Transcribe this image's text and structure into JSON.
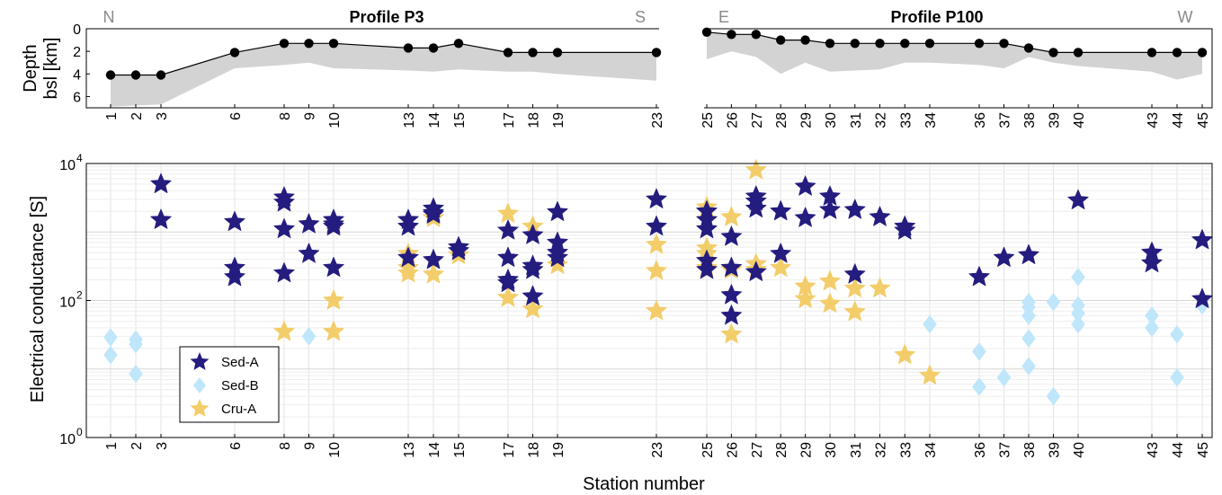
{
  "colors": {
    "sedA": "#241c7e",
    "sedB": "#bfe6fa",
    "cruA": "#f2cd69",
    "basement": "#d3d3d3"
  },
  "chart_data": [
    {
      "type": "line",
      "ylabel": "Depth bsl [km]",
      "ylabel_lines": [
        "Depth",
        "bsl [km]"
      ],
      "ylim": [
        0,
        7
      ],
      "y_reversed": true,
      "yticks": [
        0,
        2,
        4,
        6
      ],
      "panels": [
        {
          "title": "Profile P3",
          "left_label": "N",
          "right_label": "S",
          "stations": [
            1,
            2,
            3,
            6,
            8,
            9,
            10,
            13,
            14,
            15,
            17,
            18,
            19,
            23
          ],
          "sediment_depth": [
            4.1,
            4.1,
            4.1,
            2.1,
            1.3,
            1.3,
            1.3,
            1.7,
            1.7,
            1.3,
            2.1,
            2.1,
            2.1,
            2.1
          ],
          "basement_lower": [
            6.9,
            6.8,
            6.7,
            3.5,
            3.2,
            3.0,
            3.5,
            3.7,
            3.8,
            3.6,
            3.8,
            3.8,
            4.0,
            4.6
          ]
        },
        {
          "title": "Profile P100",
          "left_label": "E",
          "right_label": "W",
          "stations": [
            25,
            26,
            27,
            28,
            29,
            30,
            31,
            32,
            33,
            34,
            36,
            37,
            38,
            39,
            40,
            43,
            44,
            45
          ],
          "sediment_depth": [
            0.3,
            0.5,
            0.5,
            1.0,
            1.0,
            1.3,
            1.3,
            1.3,
            1.3,
            1.3,
            1.3,
            1.3,
            1.7,
            2.1,
            2.1,
            2.1,
            2.1,
            2.1
          ],
          "basement_lower": [
            2.7,
            2.0,
            2.5,
            4.0,
            3.0,
            3.8,
            3.7,
            3.6,
            3.0,
            3.0,
            3.2,
            3.5,
            2.5,
            3.0,
            3.3,
            3.8,
            4.5,
            4.0
          ]
        }
      ]
    },
    {
      "type": "scatter",
      "xlabel": "Station number",
      "ylabel": "Electrical conductance [S]",
      "y_scale": "log",
      "ylim": [
        1,
        10000
      ],
      "yticks": [
        1,
        100,
        10000
      ],
      "ytick_labels": [
        {
          "base": "10",
          "exp": "0"
        },
        {
          "base": "10",
          "exp": "2"
        },
        {
          "base": "10",
          "exp": "4"
        }
      ],
      "xticks": [
        1,
        2,
        3,
        6,
        8,
        9,
        10,
        13,
        14,
        15,
        17,
        18,
        19,
        23,
        25,
        26,
        27,
        28,
        29,
        30,
        31,
        32,
        33,
        34,
        36,
        37,
        38,
        39,
        40,
        43,
        44,
        45
      ],
      "grid": true,
      "legend_position": "lower-left",
      "series": [
        {
          "name": "Sed-A",
          "marker": "star",
          "color": "#241c7e",
          "x": [
            3,
            3,
            6,
            6,
            6,
            8,
            8,
            8,
            8,
            9,
            9,
            10,
            10,
            10,
            10,
            13,
            13,
            13,
            14,
            14,
            14,
            14,
            15,
            15,
            17,
            17,
            17,
            17,
            18,
            18,
            18,
            18,
            19,
            19,
            19,
            19,
            23,
            23,
            25,
            25,
            25,
            25,
            25,
            26,
            26,
            26,
            26,
            27,
            27,
            27,
            27,
            28,
            28,
            29,
            29,
            30,
            30,
            31,
            31,
            32,
            33,
            33,
            36,
            37,
            38,
            40,
            43,
            43,
            45,
            45
          ],
          "y": [
            5000,
            1500,
            1400,
            300,
            220,
            3200,
            2700,
            1100,
            250,
            1300,
            480,
            1500,
            1300,
            1200,
            300,
            1500,
            1200,
            420,
            2200,
            1900,
            1800,
            390,
            600,
            530,
            1050,
            420,
            200,
            180,
            900,
            320,
            280,
            115,
            1950,
            700,
            500,
            420,
            3000,
            1200,
            2000,
            1500,
            1100,
            380,
            280,
            850,
            300,
            120,
            60,
            3300,
            2800,
            2200,
            260,
            2000,
            480,
            4600,
            1600,
            3300,
            2100,
            2100,
            240,
            1650,
            1200,
            1050,
            220,
            420,
            460,
            2900,
            500,
            350,
            760,
            105
          ]
        },
        {
          "name": "Sed-B",
          "marker": "diamond",
          "color": "#bfe6fa",
          "x": [
            1,
            1,
            2,
            2,
            2,
            9,
            34,
            36,
            36,
            37,
            38,
            38,
            38,
            38,
            38,
            39,
            39,
            40,
            40,
            40,
            40,
            43,
            43,
            44,
            44,
            45
          ],
          "y": [
            29,
            16,
            27,
            23,
            8.5,
            30,
            45,
            18,
            5.5,
            7.5,
            95,
            60,
            28,
            11,
            80,
            4,
            95,
            220,
            85,
            65,
            45,
            60,
            40,
            32,
            7.5,
            85
          ]
        },
        {
          "name": "Cru-A",
          "marker": "star",
          "color": "#f2cd69",
          "x": [
            8,
            10,
            10,
            13,
            13,
            13,
            14,
            14,
            15,
            17,
            17,
            18,
            18,
            19,
            23,
            23,
            23,
            25,
            25,
            25,
            25,
            26,
            26,
            26,
            27,
            27,
            27,
            28,
            29,
            29,
            30,
            30,
            31,
            31,
            32,
            33,
            34
          ],
          "y": [
            35,
            100,
            35,
            480,
            300,
            250,
            1600,
            240,
            460,
            1850,
            110,
            1200,
            75,
            330,
            650,
            270,
            70,
            2300,
            580,
            480,
            300,
            1650,
            280,
            32,
            8000,
            340,
            280,
            300,
            160,
            105,
            190,
            90,
            150,
            68,
            150,
            16,
            8
          ]
        }
      ]
    }
  ]
}
